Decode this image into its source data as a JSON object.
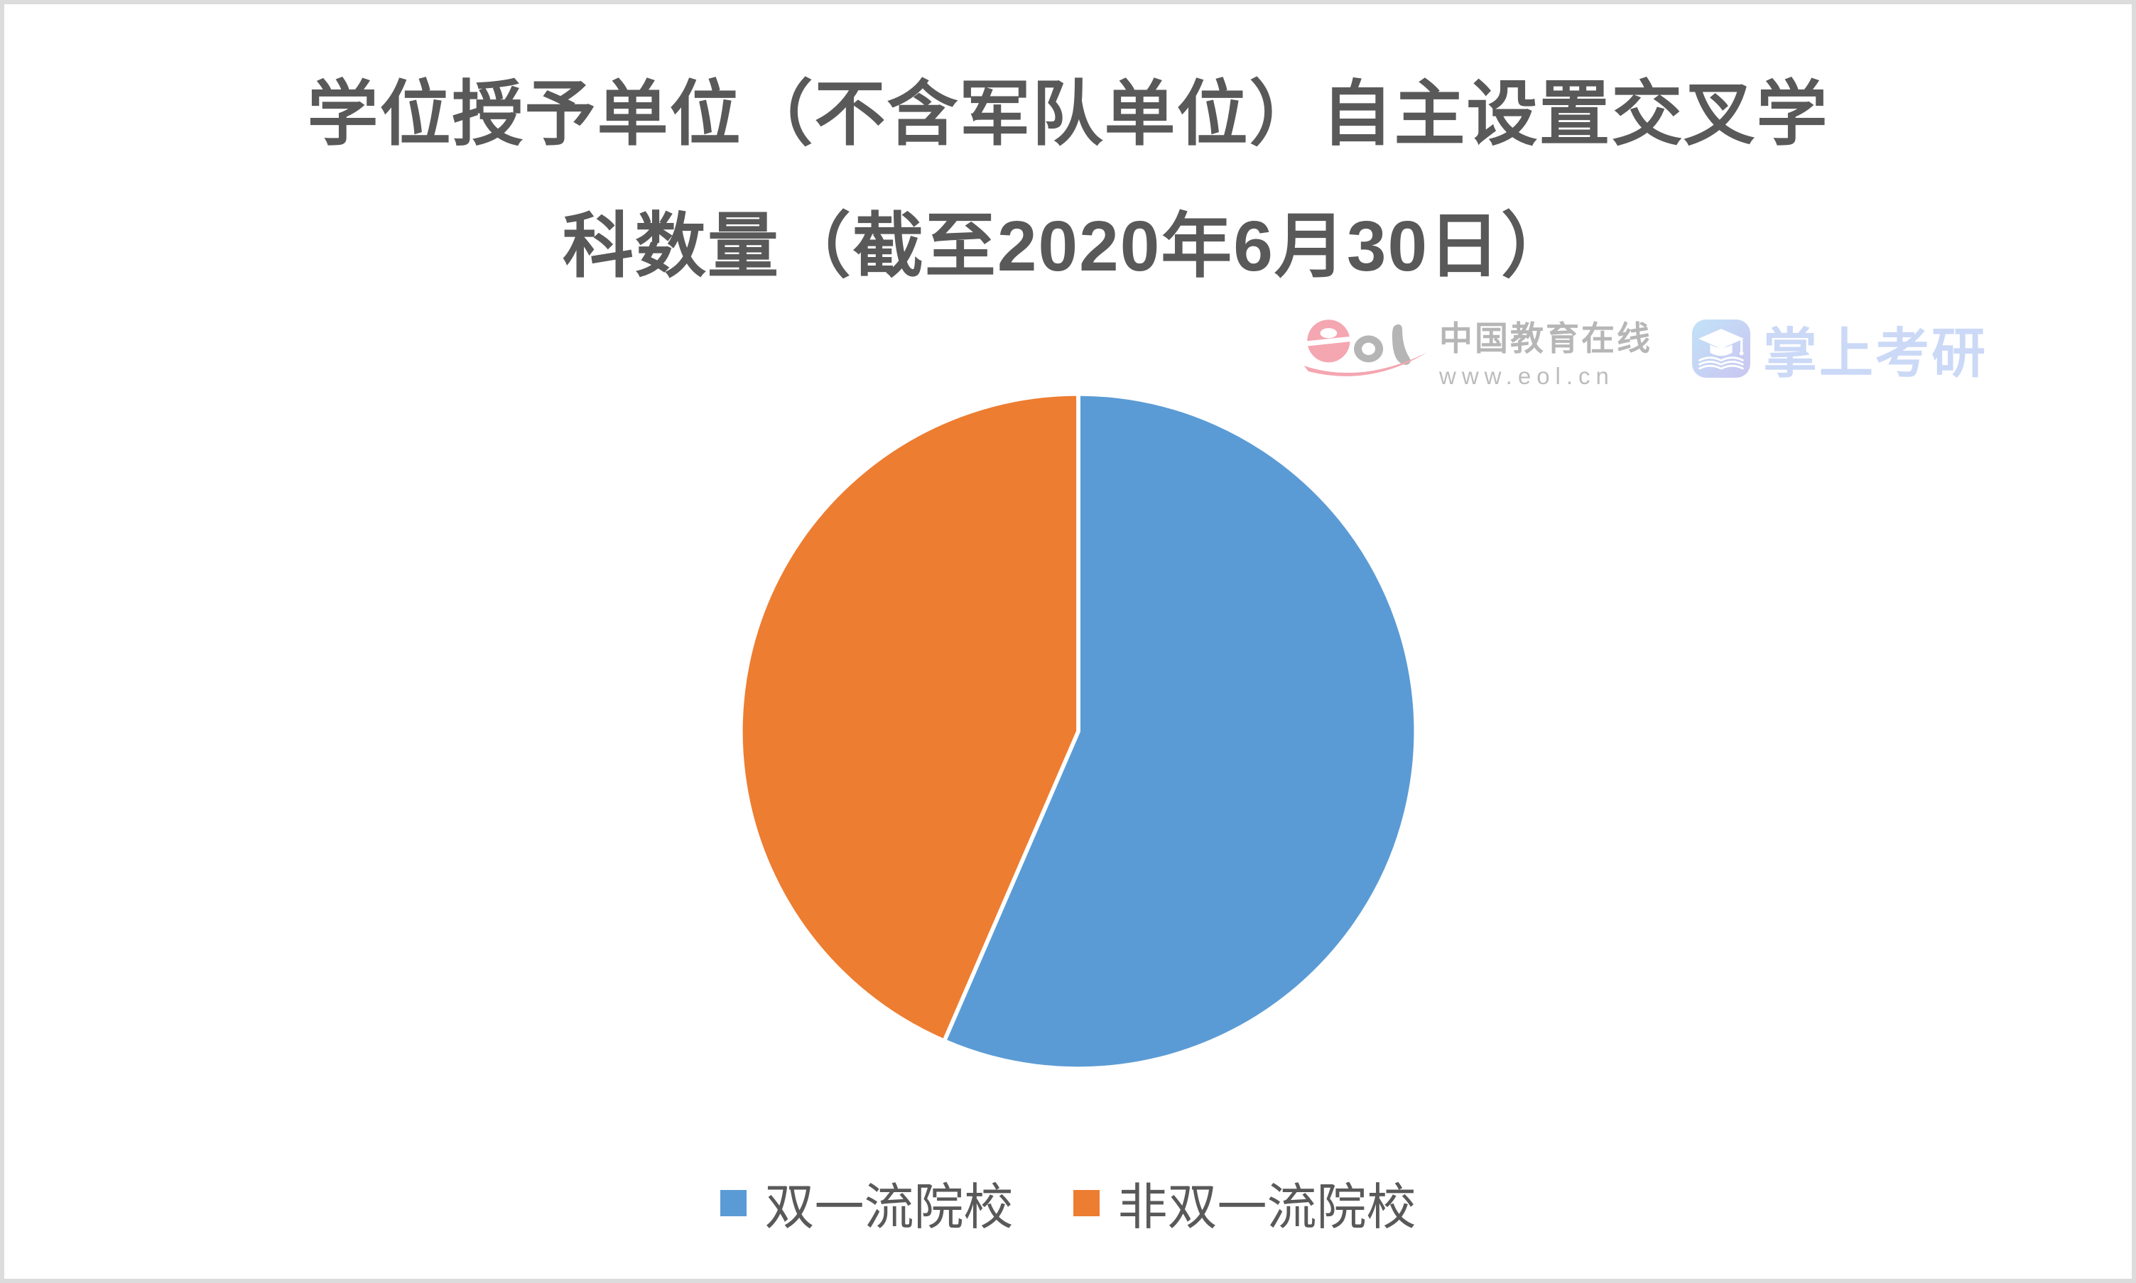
{
  "frame": {
    "background": "#ffffff",
    "border_color": "#dcdcdc"
  },
  "title": {
    "line1": "学位授予单位（不含军队单位）自主设置交叉学",
    "line2": "科数量（截至2020年6月30日）",
    "color": "#595959"
  },
  "watermarks": {
    "eol": {
      "brand": "中国教育在线",
      "url": "www.eol.cn",
      "mark_pink": "#f4a6b1",
      "mark_gray": "#b5b5b5",
      "text_color": "#b6b6b6"
    },
    "kaoyan": {
      "name": "掌上考研",
      "text_color": "#cbd9f7",
      "icon_gradient_start": "#c2e2f8",
      "icon_gradient_end": "#cac6f1"
    }
  },
  "chart_data": {
    "type": "pie",
    "title": "学位授予单位（不含军队单位）自主设置交叉学科数量（截至2020年6月30日）",
    "labels": [
      "双一流院校",
      "非双一流院校"
    ],
    "values": [
      56.5,
      43.5
    ],
    "values_are_percent_estimates": true,
    "colors": [
      "#5b9bd5",
      "#ed7d31"
    ],
    "slice_border_color": "#ffffff",
    "start_angle_deg": 0,
    "direction": "clockwise",
    "legend_position": "bottom",
    "legend_text_color": "#595959"
  }
}
